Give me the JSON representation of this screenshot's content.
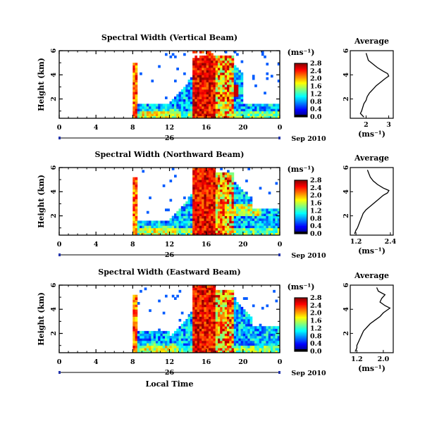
{
  "chart_data": [
    {
      "type": "heatmap",
      "title": "Spectral Width (Vertical Beam)",
      "ylabel": "Height (km)",
      "xticks": [
        "0",
        "4",
        "8",
        "12",
        "16",
        "20",
        "0"
      ],
      "yticks": [
        "2",
        "4",
        "6"
      ],
      "date_label": "26",
      "date_suffix": "Sep 2010",
      "xlabel": "",
      "colorbar": {
        "unit": "(ms⁻¹)",
        "ticks": [
          "0.0",
          "0.4",
          "0.8",
          "1.2",
          "1.6",
          "2.0",
          "2.4",
          "2.8"
        ],
        "range": [
          0,
          2.8
        ]
      },
      "x_range": [
        0,
        24
      ],
      "y_range": [
        0.4,
        6
      ],
      "average": {
        "title": "Average",
        "xlabel": "(ms⁻¹)",
        "xticks": [
          "2",
          "3"
        ],
        "yticks": [
          "2",
          "4",
          "6"
        ],
        "x_range": [
          1.3,
          3.2
        ],
        "profile": [
          [
            0.5,
            1.9
          ],
          [
            0.8,
            1.75
          ],
          [
            1.0,
            1.8
          ],
          [
            1.3,
            1.85
          ],
          [
            1.6,
            1.9
          ],
          [
            1.9,
            2.0
          ],
          [
            2.2,
            2.05
          ],
          [
            2.5,
            2.15
          ],
          [
            2.8,
            2.3
          ],
          [
            3.1,
            2.45
          ],
          [
            3.4,
            2.65
          ],
          [
            3.7,
            2.85
          ],
          [
            3.9,
            3.0
          ],
          [
            4.1,
            2.95
          ],
          [
            4.3,
            2.75
          ],
          [
            4.6,
            2.5
          ],
          [
            4.9,
            2.3
          ],
          [
            5.2,
            2.1
          ],
          [
            5.5,
            2.05
          ],
          [
            5.8,
            2.0
          ]
        ]
      }
    },
    {
      "type": "heatmap",
      "title": "Spectral Width (Northward Beam)",
      "ylabel": "Height (km)",
      "xticks": [
        "0",
        "4",
        "8",
        "12",
        "16",
        "20",
        "0"
      ],
      "yticks": [
        "2",
        "4",
        "6"
      ],
      "date_label": "26",
      "date_suffix": "Sep 2010",
      "xlabel": "",
      "colorbar": {
        "unit": "(ms⁻¹)",
        "ticks": [
          "0.0",
          "0.4",
          "0.8",
          "1.2",
          "1.6",
          "2.0",
          "2.4",
          "2.8"
        ],
        "range": [
          0,
          2.8
        ]
      },
      "x_range": [
        0,
        24
      ],
      "y_range": [
        0.4,
        6
      ],
      "average": {
        "title": "Average",
        "xlabel": "(ms⁻¹)",
        "xticks": [
          "1.2",
          "2.4"
        ],
        "yticks": [
          "2",
          "4",
          "6"
        ],
        "x_range": [
          1.0,
          2.5
        ],
        "profile": [
          [
            0.5,
            1.15
          ],
          [
            0.8,
            1.2
          ],
          [
            1.0,
            1.25
          ],
          [
            1.3,
            1.3
          ],
          [
            1.6,
            1.35
          ],
          [
            1.9,
            1.4
          ],
          [
            2.2,
            1.45
          ],
          [
            2.5,
            1.55
          ],
          [
            2.8,
            1.7
          ],
          [
            3.1,
            1.85
          ],
          [
            3.4,
            2.0
          ],
          [
            3.7,
            2.15
          ],
          [
            3.9,
            2.3
          ],
          [
            4.1,
            2.35
          ],
          [
            4.3,
            2.15
          ],
          [
            4.6,
            1.95
          ],
          [
            4.9,
            1.8
          ],
          [
            5.2,
            1.7
          ],
          [
            5.5,
            1.65
          ],
          [
            5.8,
            1.6
          ]
        ]
      }
    },
    {
      "type": "heatmap",
      "title": "Spectral Width (Eastward Beam)",
      "ylabel": "Height (km)",
      "xticks": [
        "0",
        "4",
        "8",
        "12",
        "16",
        "20",
        "0"
      ],
      "yticks": [
        "2",
        "4",
        "6"
      ],
      "date_label": "26",
      "date_suffix": "Sep 2010",
      "xlabel": "Local Time",
      "colorbar": {
        "unit": "(ms⁻¹)",
        "ticks": [
          "0.0",
          "0.4",
          "0.8",
          "1.2",
          "1.6",
          "2.0",
          "2.4",
          "2.8"
        ],
        "range": [
          0,
          2.8
        ]
      },
      "x_range": [
        0,
        24
      ],
      "y_range": [
        0.4,
        6
      ],
      "average": {
        "title": "Average",
        "xlabel": "(ms⁻¹)",
        "xticks": [
          "1.2",
          "2.0"
        ],
        "yticks": [
          "2",
          "4",
          "6"
        ],
        "x_range": [
          1.0,
          2.3
        ],
        "profile": [
          [
            0.5,
            1.15
          ],
          [
            0.8,
            1.2
          ],
          [
            1.0,
            1.2
          ],
          [
            1.3,
            1.25
          ],
          [
            1.6,
            1.3
          ],
          [
            1.9,
            1.35
          ],
          [
            2.2,
            1.4
          ],
          [
            2.5,
            1.5
          ],
          [
            2.8,
            1.6
          ],
          [
            3.1,
            1.75
          ],
          [
            3.4,
            1.9
          ],
          [
            3.7,
            2.0
          ],
          [
            3.9,
            2.1
          ],
          [
            4.1,
            2.2
          ],
          [
            4.3,
            2.05
          ],
          [
            4.6,
            1.9
          ],
          [
            4.9,
            1.95
          ],
          [
            5.2,
            2.05
          ],
          [
            5.5,
            1.85
          ],
          [
            5.8,
            1.8
          ]
        ]
      }
    }
  ]
}
